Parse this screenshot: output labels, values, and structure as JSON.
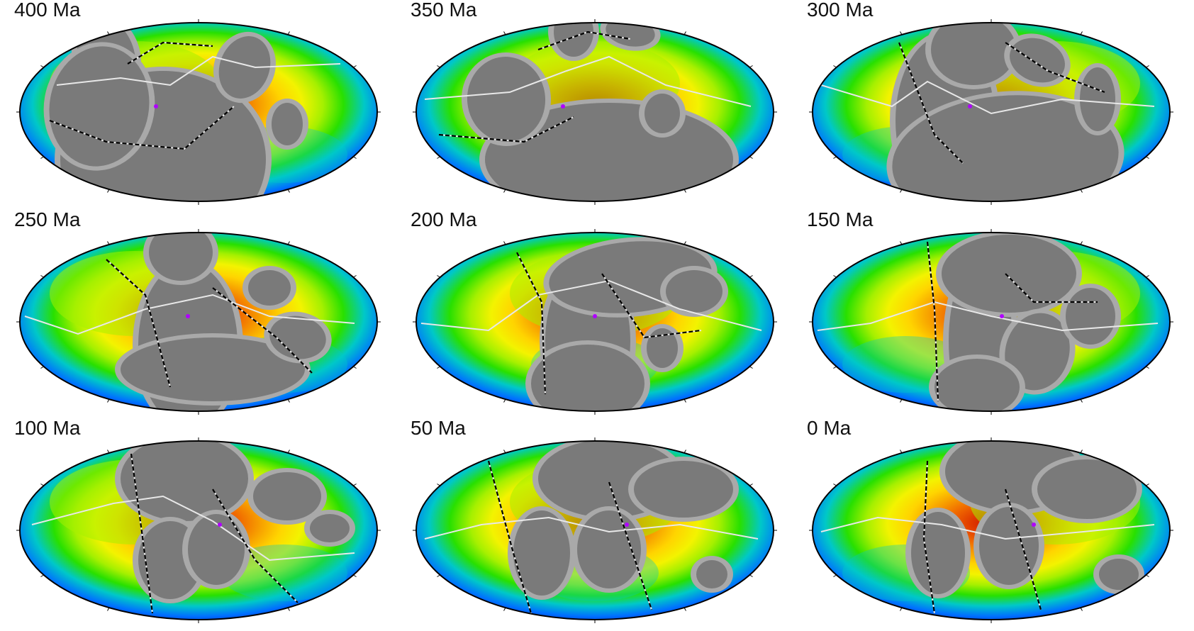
{
  "figure": {
    "panels": [
      {
        "label": "400 Ma",
        "age_ma": 400
      },
      {
        "label": "350 Ma",
        "age_ma": 350
      },
      {
        "label": "300 Ma",
        "age_ma": 300
      },
      {
        "label": "250 Ma",
        "age_ma": 250
      },
      {
        "label": "200 Ma",
        "age_ma": 200
      },
      {
        "label": "150 Ma",
        "age_ma": 150
      },
      {
        "label": "100 Ma",
        "age_ma": 100
      },
      {
        "label": "50 Ma",
        "age_ma": 50
      },
      {
        "label": "0 Ma",
        "age_ma": 0
      }
    ],
    "colors": {
      "ocean_gradient": [
        "#c81400",
        "#e03a00",
        "#f06a00",
        "#f7a000",
        "#ffd400",
        "#f3f300",
        "#a6f000",
        "#28e000",
        "#00c8c8",
        "#0070ff",
        "#0020c0"
      ],
      "continent": "#7a7a7a",
      "continent_margin": "#a9a9a9",
      "plate_boundary": "#e8e8e8",
      "subduction": "#000000",
      "outline": "#000000",
      "slab_accent": "#b000ff"
    }
  }
}
